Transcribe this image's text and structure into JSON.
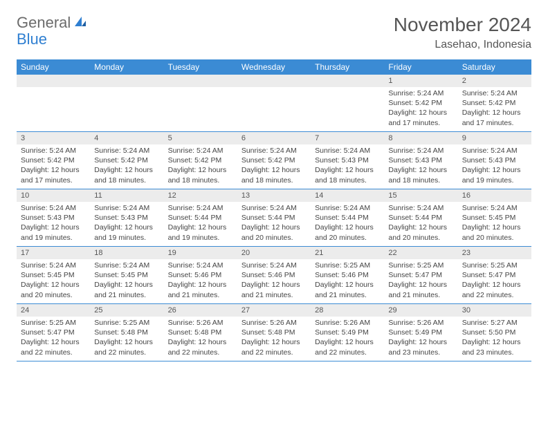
{
  "logo": {
    "text1": "General",
    "text2": "Blue"
  },
  "title": "November 2024",
  "location": "Lasehao, Indonesia",
  "day_names": [
    "Sunday",
    "Monday",
    "Tuesday",
    "Wednesday",
    "Thursday",
    "Friday",
    "Saturday"
  ],
  "colors": {
    "header_bg": "#3b8bd4",
    "header_text": "#ffffff",
    "daynum_bg": "#ececec",
    "border": "#3b8bd4",
    "text": "#444444",
    "logo_gray": "#6b6b6b",
    "logo_blue": "#2f7fd1"
  },
  "weeks": [
    [
      {
        "num": "",
        "lines": []
      },
      {
        "num": "",
        "lines": []
      },
      {
        "num": "",
        "lines": []
      },
      {
        "num": "",
        "lines": []
      },
      {
        "num": "",
        "lines": []
      },
      {
        "num": "1",
        "lines": [
          "Sunrise: 5:24 AM",
          "Sunset: 5:42 PM",
          "Daylight: 12 hours and 17 minutes."
        ]
      },
      {
        "num": "2",
        "lines": [
          "Sunrise: 5:24 AM",
          "Sunset: 5:42 PM",
          "Daylight: 12 hours and 17 minutes."
        ]
      }
    ],
    [
      {
        "num": "3",
        "lines": [
          "Sunrise: 5:24 AM",
          "Sunset: 5:42 PM",
          "Daylight: 12 hours and 17 minutes."
        ]
      },
      {
        "num": "4",
        "lines": [
          "Sunrise: 5:24 AM",
          "Sunset: 5:42 PM",
          "Daylight: 12 hours and 18 minutes."
        ]
      },
      {
        "num": "5",
        "lines": [
          "Sunrise: 5:24 AM",
          "Sunset: 5:42 PM",
          "Daylight: 12 hours and 18 minutes."
        ]
      },
      {
        "num": "6",
        "lines": [
          "Sunrise: 5:24 AM",
          "Sunset: 5:42 PM",
          "Daylight: 12 hours and 18 minutes."
        ]
      },
      {
        "num": "7",
        "lines": [
          "Sunrise: 5:24 AM",
          "Sunset: 5:43 PM",
          "Daylight: 12 hours and 18 minutes."
        ]
      },
      {
        "num": "8",
        "lines": [
          "Sunrise: 5:24 AM",
          "Sunset: 5:43 PM",
          "Daylight: 12 hours and 18 minutes."
        ]
      },
      {
        "num": "9",
        "lines": [
          "Sunrise: 5:24 AM",
          "Sunset: 5:43 PM",
          "Daylight: 12 hours and 19 minutes."
        ]
      }
    ],
    [
      {
        "num": "10",
        "lines": [
          "Sunrise: 5:24 AM",
          "Sunset: 5:43 PM",
          "Daylight: 12 hours and 19 minutes."
        ]
      },
      {
        "num": "11",
        "lines": [
          "Sunrise: 5:24 AM",
          "Sunset: 5:43 PM",
          "Daylight: 12 hours and 19 minutes."
        ]
      },
      {
        "num": "12",
        "lines": [
          "Sunrise: 5:24 AM",
          "Sunset: 5:44 PM",
          "Daylight: 12 hours and 19 minutes."
        ]
      },
      {
        "num": "13",
        "lines": [
          "Sunrise: 5:24 AM",
          "Sunset: 5:44 PM",
          "Daylight: 12 hours and 20 minutes."
        ]
      },
      {
        "num": "14",
        "lines": [
          "Sunrise: 5:24 AM",
          "Sunset: 5:44 PM",
          "Daylight: 12 hours and 20 minutes."
        ]
      },
      {
        "num": "15",
        "lines": [
          "Sunrise: 5:24 AM",
          "Sunset: 5:44 PM",
          "Daylight: 12 hours and 20 minutes."
        ]
      },
      {
        "num": "16",
        "lines": [
          "Sunrise: 5:24 AM",
          "Sunset: 5:45 PM",
          "Daylight: 12 hours and 20 minutes."
        ]
      }
    ],
    [
      {
        "num": "17",
        "lines": [
          "Sunrise: 5:24 AM",
          "Sunset: 5:45 PM",
          "Daylight: 12 hours and 20 minutes."
        ]
      },
      {
        "num": "18",
        "lines": [
          "Sunrise: 5:24 AM",
          "Sunset: 5:45 PM",
          "Daylight: 12 hours and 21 minutes."
        ]
      },
      {
        "num": "19",
        "lines": [
          "Sunrise: 5:24 AM",
          "Sunset: 5:46 PM",
          "Daylight: 12 hours and 21 minutes."
        ]
      },
      {
        "num": "20",
        "lines": [
          "Sunrise: 5:24 AM",
          "Sunset: 5:46 PM",
          "Daylight: 12 hours and 21 minutes."
        ]
      },
      {
        "num": "21",
        "lines": [
          "Sunrise: 5:25 AM",
          "Sunset: 5:46 PM",
          "Daylight: 12 hours and 21 minutes."
        ]
      },
      {
        "num": "22",
        "lines": [
          "Sunrise: 5:25 AM",
          "Sunset: 5:47 PM",
          "Daylight: 12 hours and 21 minutes."
        ]
      },
      {
        "num": "23",
        "lines": [
          "Sunrise: 5:25 AM",
          "Sunset: 5:47 PM",
          "Daylight: 12 hours and 22 minutes."
        ]
      }
    ],
    [
      {
        "num": "24",
        "lines": [
          "Sunrise: 5:25 AM",
          "Sunset: 5:47 PM",
          "Daylight: 12 hours and 22 minutes."
        ]
      },
      {
        "num": "25",
        "lines": [
          "Sunrise: 5:25 AM",
          "Sunset: 5:48 PM",
          "Daylight: 12 hours and 22 minutes."
        ]
      },
      {
        "num": "26",
        "lines": [
          "Sunrise: 5:26 AM",
          "Sunset: 5:48 PM",
          "Daylight: 12 hours and 22 minutes."
        ]
      },
      {
        "num": "27",
        "lines": [
          "Sunrise: 5:26 AM",
          "Sunset: 5:48 PM",
          "Daylight: 12 hours and 22 minutes."
        ]
      },
      {
        "num": "28",
        "lines": [
          "Sunrise: 5:26 AM",
          "Sunset: 5:49 PM",
          "Daylight: 12 hours and 22 minutes."
        ]
      },
      {
        "num": "29",
        "lines": [
          "Sunrise: 5:26 AM",
          "Sunset: 5:49 PM",
          "Daylight: 12 hours and 23 minutes."
        ]
      },
      {
        "num": "30",
        "lines": [
          "Sunrise: 5:27 AM",
          "Sunset: 5:50 PM",
          "Daylight: 12 hours and 23 minutes."
        ]
      }
    ]
  ]
}
